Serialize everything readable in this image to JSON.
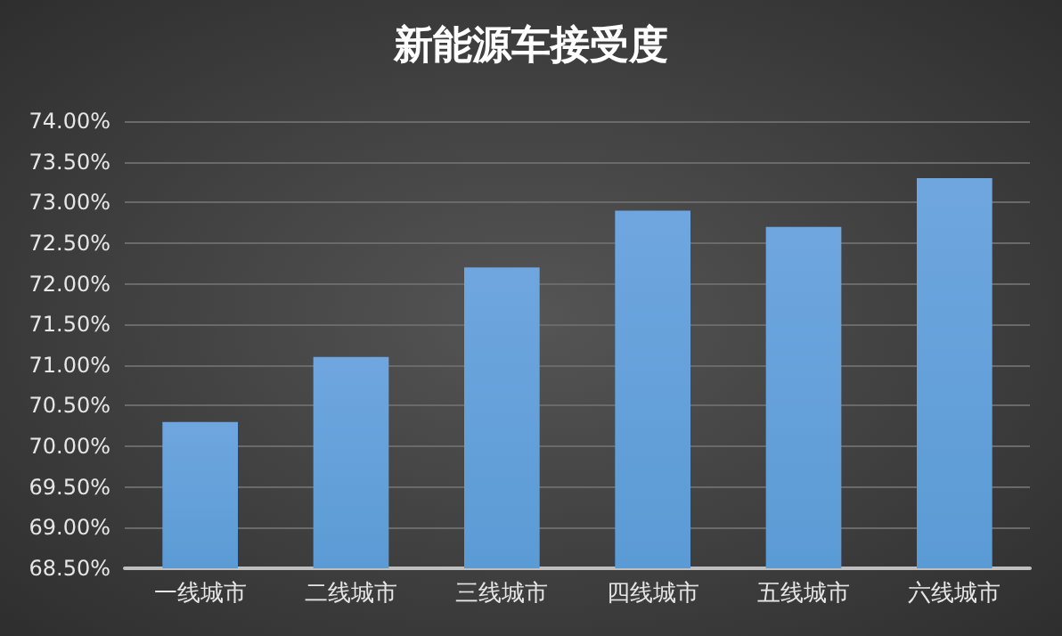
{
  "chart_data": {
    "type": "bar",
    "title": "新能源车接受度",
    "categories": [
      "一线城市",
      "二线城市",
      "三线城市",
      "四线城市",
      "五线城市",
      "六线城市"
    ],
    "values": [
      70.3,
      71.1,
      72.2,
      72.9,
      72.7,
      73.3
    ],
    "color": "#5b9bd5",
    "ylim": [
      68.5,
      74
    ],
    "yticks": [
      {
        "value": 68.5,
        "label": "68.50%"
      },
      {
        "value": 69,
        "label": "69.00%"
      },
      {
        "value": 69.5,
        "label": "69.50%"
      },
      {
        "value": 70,
        "label": "70.00%"
      },
      {
        "value": 70.5,
        "label": "70.50%"
      },
      {
        "value": 71,
        "label": "71.00%"
      },
      {
        "value": 71.5,
        "label": "71.50%"
      },
      {
        "value": 72,
        "label": "72.00%"
      },
      {
        "value": 72.5,
        "label": "72.50%"
      },
      {
        "value": 73,
        "label": "73.00%"
      },
      {
        "value": 73.5,
        "label": "73.50%"
      },
      {
        "value": 74,
        "label": "74.00%"
      }
    ],
    "grid": "y"
  }
}
